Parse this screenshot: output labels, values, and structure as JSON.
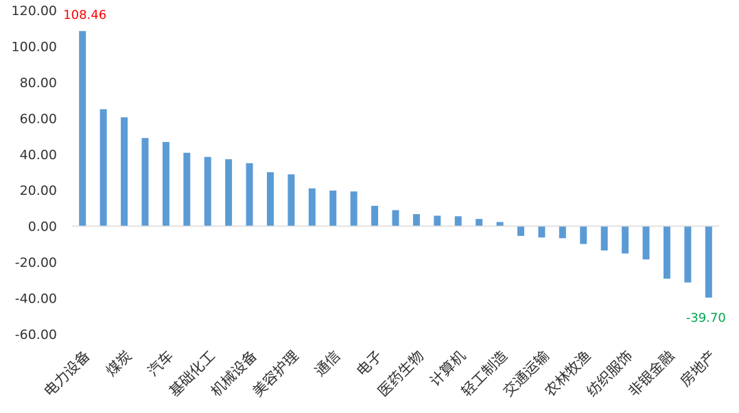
{
  "chart_data": {
    "type": "bar",
    "title": "",
    "xlabel": "",
    "ylabel": "",
    "ylim": [
      -60,
      120
    ],
    "yticks": [
      120,
      100,
      80,
      60,
      40,
      20,
      0,
      -20,
      -40,
      -60
    ],
    "ytick_labels": [
      "120.00",
      "100.00",
      "80.00",
      "60.00",
      "40.00",
      "20.00",
      "0.00",
      "-20.00",
      "-40.00",
      "-60.00"
    ],
    "grid": false,
    "legend": "none",
    "bar_color": "#5B9BD5",
    "categories": [
      "电力设备",
      "",
      "煤炭",
      "",
      "汽车",
      "",
      "基础化工",
      "",
      "机械设备",
      "",
      "美容护理",
      "",
      "通信",
      "",
      "电子",
      "",
      "医药生物",
      "",
      "计算机",
      "",
      "轻工制造",
      "",
      "交通运输",
      "",
      "农林牧渔",
      "",
      "纺织服饰",
      "",
      "非银金融",
      "",
      "房地产"
    ],
    "values": [
      108.46,
      65.0,
      60.5,
      49.0,
      46.8,
      40.8,
      38.5,
      37.2,
      35.0,
      30.0,
      28.8,
      21.0,
      19.8,
      19.3,
      11.3,
      8.9,
      6.7,
      5.8,
      5.5,
      4.0,
      2.3,
      -5.4,
      -6.3,
      -6.7,
      -9.9,
      -13.5,
      -15.2,
      -18.5,
      -29.2,
      -31.3,
      -39.7
    ],
    "data_labels": [
      {
        "index": 0,
        "text": "108.46",
        "color": "#FF0000"
      },
      {
        "index": 30,
        "text": "-39.70",
        "color": "#00A651"
      }
    ]
  }
}
